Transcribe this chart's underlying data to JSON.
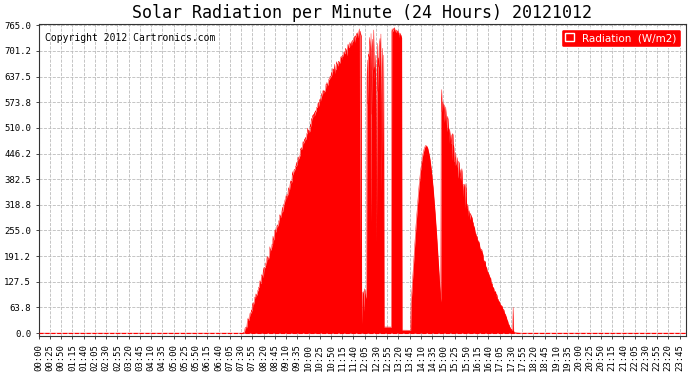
{
  "title": "Solar Radiation per Minute (24 Hours) 20121012",
  "copyright_text": "Copyright 2012 Cartronics.com",
  "legend_label": "Radiation  (W/m2)",
  "y_ticks": [
    0.0,
    63.8,
    127.5,
    191.2,
    255.0,
    318.8,
    382.5,
    446.2,
    510.0,
    573.8,
    637.5,
    701.2,
    765.0
  ],
  "y_max": 765.0,
  "fill_color": "#FF0000",
  "line_color": "#FF0000",
  "background_color": "#FFFFFF",
  "grid_color": "#BBBBBB",
  "zero_line_color": "#FF0000",
  "title_fontsize": 12,
  "copyright_fontsize": 7,
  "tick_fontsize": 6.5,
  "legend_fontsize": 7.5,
  "minutes_per_day": 1440,
  "sunrise_minute": 455,
  "sunset_minute": 1075,
  "peak_minute": 757,
  "peak_value": 765.0,
  "x_tick_interval": 25
}
